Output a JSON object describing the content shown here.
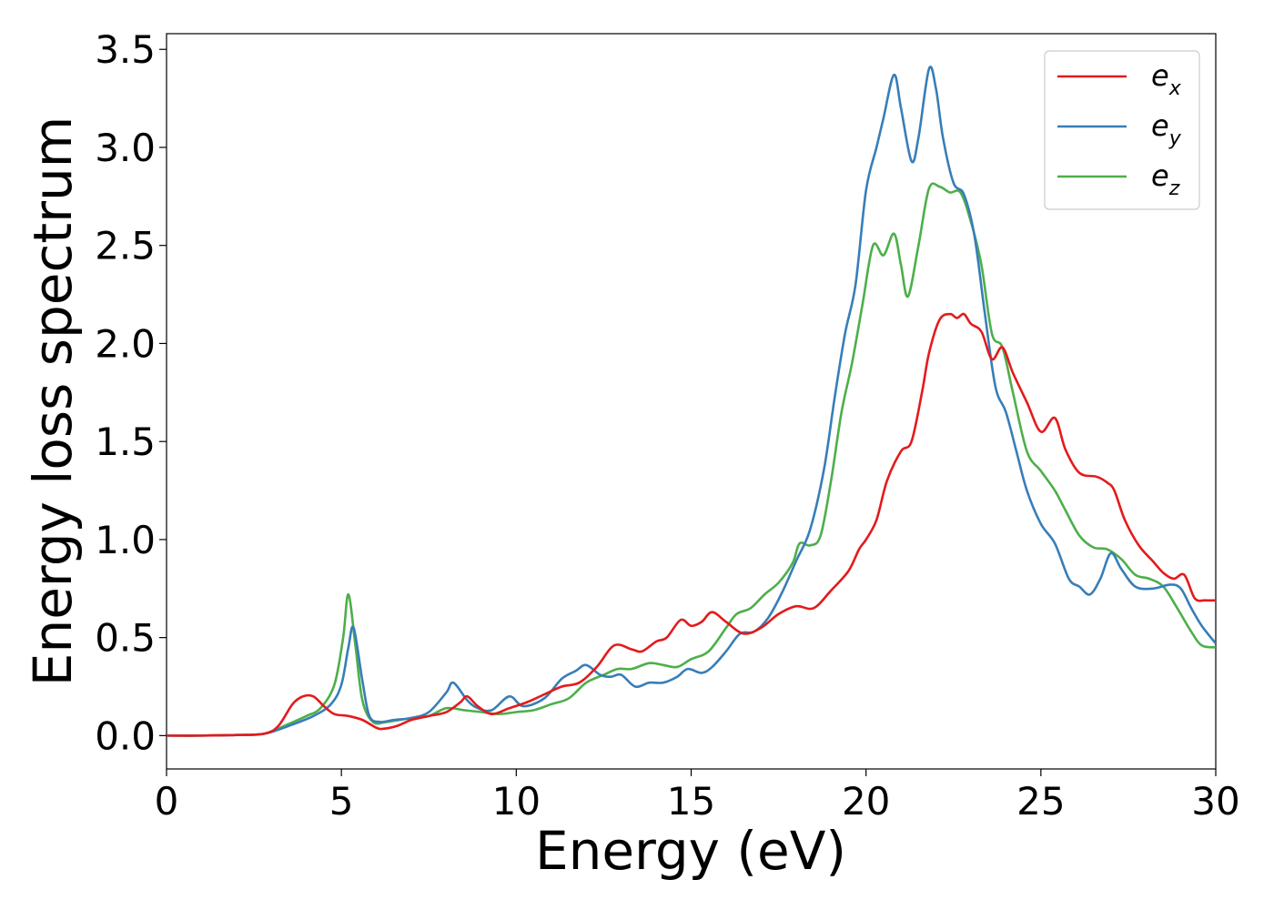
{
  "chart_data": {
    "type": "line",
    "title": "",
    "xlabel": "Energy (eV)",
    "ylabel": "Energy loss spectrum",
    "xlim": [
      0,
      30
    ],
    "ylim": [
      -0.17,
      3.58
    ],
    "xticks": [
      0,
      5,
      10,
      15,
      20,
      25,
      30
    ],
    "xtick_labels": [
      "0",
      "5",
      "10",
      "15",
      "20",
      "25",
      "30"
    ],
    "yticks": [
      0.0,
      0.5,
      1.0,
      1.5,
      2.0,
      2.5,
      3.0,
      3.5
    ],
    "ytick_labels": [
      "0.0",
      "0.5",
      "1.0",
      "1.5",
      "2.0",
      "2.5",
      "3.0",
      "3.5"
    ],
    "grid": false,
    "legend_position": "top-right",
    "series": [
      {
        "name": "e_x",
        "label_base": "e",
        "label_sub": "x",
        "color": "#e41a1c",
        "points": [
          [
            0,
            0
          ],
          [
            1,
            0
          ],
          [
            2,
            0.003
          ],
          [
            2.8,
            0.01
          ],
          [
            3.2,
            0.05
          ],
          [
            3.6,
            0.16
          ],
          [
            3.9,
            0.2
          ],
          [
            4.2,
            0.2
          ],
          [
            4.5,
            0.15
          ],
          [
            4.8,
            0.11
          ],
          [
            5.2,
            0.1
          ],
          [
            5.6,
            0.08
          ],
          [
            6,
            0.04
          ],
          [
            6.2,
            0.035
          ],
          [
            6.6,
            0.05
          ],
          [
            7,
            0.08
          ],
          [
            7.5,
            0.1
          ],
          [
            8,
            0.12
          ],
          [
            8.4,
            0.17
          ],
          [
            8.6,
            0.2
          ],
          [
            8.9,
            0.15
          ],
          [
            9.3,
            0.11
          ],
          [
            9.8,
            0.14
          ],
          [
            10.3,
            0.17
          ],
          [
            10.8,
            0.21
          ],
          [
            11.3,
            0.25
          ],
          [
            11.8,
            0.27
          ],
          [
            12.3,
            0.35
          ],
          [
            12.8,
            0.46
          ],
          [
            13.3,
            0.44
          ],
          [
            13.6,
            0.43
          ],
          [
            14,
            0.48
          ],
          [
            14.3,
            0.5
          ],
          [
            14.7,
            0.59
          ],
          [
            15,
            0.56
          ],
          [
            15.3,
            0.58
          ],
          [
            15.6,
            0.63
          ],
          [
            16,
            0.58
          ],
          [
            16.5,
            0.52
          ],
          [
            17,
            0.55
          ],
          [
            17.5,
            0.62
          ],
          [
            18,
            0.66
          ],
          [
            18.5,
            0.65
          ],
          [
            19,
            0.74
          ],
          [
            19.5,
            0.84
          ],
          [
            19.8,
            0.95
          ],
          [
            20,
            1.0
          ],
          [
            20.3,
            1.1
          ],
          [
            20.6,
            1.3
          ],
          [
            21,
            1.45
          ],
          [
            21.3,
            1.5
          ],
          [
            21.6,
            1.75
          ],
          [
            21.8,
            1.95
          ],
          [
            22.1,
            2.12
          ],
          [
            22.4,
            2.15
          ],
          [
            22.6,
            2.13
          ],
          [
            22.8,
            2.15
          ],
          [
            23.0,
            2.1
          ],
          [
            23.3,
            2.06
          ],
          [
            23.6,
            1.92
          ],
          [
            23.9,
            1.98
          ],
          [
            24.2,
            1.85
          ],
          [
            24.6,
            1.7
          ],
          [
            25,
            1.55
          ],
          [
            25.4,
            1.62
          ],
          [
            25.7,
            1.46
          ],
          [
            26.1,
            1.34
          ],
          [
            26.6,
            1.32
          ],
          [
            26.9,
            1.29
          ],
          [
            27.1,
            1.25
          ],
          [
            27.4,
            1.1
          ],
          [
            27.8,
            0.97
          ],
          [
            28.2,
            0.89
          ],
          [
            28.5,
            0.83
          ],
          [
            28.8,
            0.8
          ],
          [
            29.1,
            0.82
          ],
          [
            29.4,
            0.7
          ],
          [
            29.7,
            0.69
          ],
          [
            30,
            0.69
          ]
        ]
      },
      {
        "name": "e_y",
        "label_base": "e",
        "label_sub": "y",
        "color": "#377eb8",
        "points": [
          [
            0,
            0
          ],
          [
            1,
            0
          ],
          [
            2,
            0.003
          ],
          [
            2.8,
            0.01
          ],
          [
            3.5,
            0.05
          ],
          [
            4.2,
            0.1
          ],
          [
            4.7,
            0.16
          ],
          [
            5,
            0.26
          ],
          [
            5.2,
            0.45
          ],
          [
            5.35,
            0.55
          ],
          [
            5.6,
            0.28
          ],
          [
            5.8,
            0.1
          ],
          [
            6.1,
            0.07
          ],
          [
            6.5,
            0.08
          ],
          [
            7,
            0.09
          ],
          [
            7.5,
            0.12
          ],
          [
            8,
            0.22
          ],
          [
            8.2,
            0.27
          ],
          [
            8.6,
            0.18
          ],
          [
            8.9,
            0.14
          ],
          [
            9.3,
            0.13
          ],
          [
            9.8,
            0.2
          ],
          [
            10.2,
            0.15
          ],
          [
            10.8,
            0.19
          ],
          [
            11.3,
            0.29
          ],
          [
            11.7,
            0.33
          ],
          [
            12,
            0.36
          ],
          [
            12.4,
            0.31
          ],
          [
            12.7,
            0.3
          ],
          [
            13,
            0.31
          ],
          [
            13.4,
            0.25
          ],
          [
            13.8,
            0.27
          ],
          [
            14.2,
            0.27
          ],
          [
            14.6,
            0.3
          ],
          [
            14.9,
            0.34
          ],
          [
            15.3,
            0.32
          ],
          [
            15.6,
            0.35
          ],
          [
            16,
            0.43
          ],
          [
            16.4,
            0.52
          ],
          [
            16.8,
            0.53
          ],
          [
            17.2,
            0.6
          ],
          [
            17.6,
            0.73
          ],
          [
            18,
            0.89
          ],
          [
            18.4,
            1.05
          ],
          [
            18.8,
            1.36
          ],
          [
            19.1,
            1.72
          ],
          [
            19.4,
            2.05
          ],
          [
            19.7,
            2.3
          ],
          [
            20.0,
            2.78
          ],
          [
            20.3,
            3.0
          ],
          [
            20.5,
            3.15
          ],
          [
            20.8,
            3.37
          ],
          [
            21.0,
            3.2
          ],
          [
            21.3,
            2.93
          ],
          [
            21.5,
            3.05
          ],
          [
            21.8,
            3.4
          ],
          [
            22.0,
            3.3
          ],
          [
            22.2,
            3.05
          ],
          [
            22.5,
            2.82
          ],
          [
            22.8,
            2.76
          ],
          [
            23.1,
            2.55
          ],
          [
            23.4,
            2.15
          ],
          [
            23.7,
            1.78
          ],
          [
            24.0,
            1.65
          ],
          [
            24.3,
            1.45
          ],
          [
            24.6,
            1.25
          ],
          [
            25,
            1.08
          ],
          [
            25.4,
            0.98
          ],
          [
            25.8,
            0.8
          ],
          [
            26.1,
            0.76
          ],
          [
            26.4,
            0.72
          ],
          [
            26.7,
            0.8
          ],
          [
            27,
            0.93
          ],
          [
            27.3,
            0.85
          ],
          [
            27.7,
            0.76
          ],
          [
            28.2,
            0.75
          ],
          [
            28.7,
            0.77
          ],
          [
            29.0,
            0.75
          ],
          [
            29.3,
            0.65
          ],
          [
            29.6,
            0.56
          ],
          [
            30,
            0.47
          ]
        ]
      },
      {
        "name": "e_z",
        "label_base": "e",
        "label_sub": "z",
        "color": "#4daf4a",
        "points": [
          [
            0,
            0
          ],
          [
            1,
            0
          ],
          [
            2,
            0.003
          ],
          [
            2.8,
            0.01
          ],
          [
            3.5,
            0.06
          ],
          [
            4,
            0.1
          ],
          [
            4.4,
            0.14
          ],
          [
            4.8,
            0.26
          ],
          [
            5.05,
            0.5
          ],
          [
            5.2,
            0.72
          ],
          [
            5.4,
            0.46
          ],
          [
            5.6,
            0.18
          ],
          [
            5.9,
            0.07
          ],
          [
            6.3,
            0.07
          ],
          [
            7,
            0.09
          ],
          [
            7.5,
            0.1
          ],
          [
            8,
            0.14
          ],
          [
            8.5,
            0.13
          ],
          [
            9,
            0.12
          ],
          [
            9.5,
            0.11
          ],
          [
            10,
            0.12
          ],
          [
            10.5,
            0.13
          ],
          [
            11,
            0.16
          ],
          [
            11.5,
            0.19
          ],
          [
            12,
            0.27
          ],
          [
            12.5,
            0.31
          ],
          [
            12.9,
            0.34
          ],
          [
            13.3,
            0.34
          ],
          [
            13.8,
            0.37
          ],
          [
            14.2,
            0.36
          ],
          [
            14.6,
            0.35
          ],
          [
            15,
            0.39
          ],
          [
            15.5,
            0.43
          ],
          [
            16,
            0.55
          ],
          [
            16.3,
            0.62
          ],
          [
            16.7,
            0.65
          ],
          [
            17.1,
            0.72
          ],
          [
            17.5,
            0.78
          ],
          [
            17.9,
            0.88
          ],
          [
            18.1,
            0.98
          ],
          [
            18.4,
            0.97
          ],
          [
            18.7,
            1.02
          ],
          [
            19,
            1.3
          ],
          [
            19.3,
            1.65
          ],
          [
            19.6,
            1.9
          ],
          [
            19.9,
            2.2
          ],
          [
            20.2,
            2.5
          ],
          [
            20.5,
            2.45
          ],
          [
            20.8,
            2.56
          ],
          [
            21.0,
            2.4
          ],
          [
            21.2,
            2.24
          ],
          [
            21.5,
            2.5
          ],
          [
            21.8,
            2.79
          ],
          [
            22.1,
            2.8
          ],
          [
            22.4,
            2.77
          ],
          [
            22.7,
            2.77
          ],
          [
            23.0,
            2.62
          ],
          [
            23.3,
            2.4
          ],
          [
            23.6,
            2.05
          ],
          [
            23.9,
            1.98
          ],
          [
            24.2,
            1.75
          ],
          [
            24.6,
            1.45
          ],
          [
            25,
            1.35
          ],
          [
            25.4,
            1.25
          ],
          [
            25.7,
            1.15
          ],
          [
            26.1,
            1.02
          ],
          [
            26.5,
            0.96
          ],
          [
            26.9,
            0.95
          ],
          [
            27.3,
            0.9
          ],
          [
            27.7,
            0.82
          ],
          [
            28.1,
            0.8
          ],
          [
            28.5,
            0.76
          ],
          [
            28.9,
            0.65
          ],
          [
            29.3,
            0.53
          ],
          [
            29.6,
            0.46
          ],
          [
            30,
            0.45
          ]
        ]
      }
    ]
  }
}
